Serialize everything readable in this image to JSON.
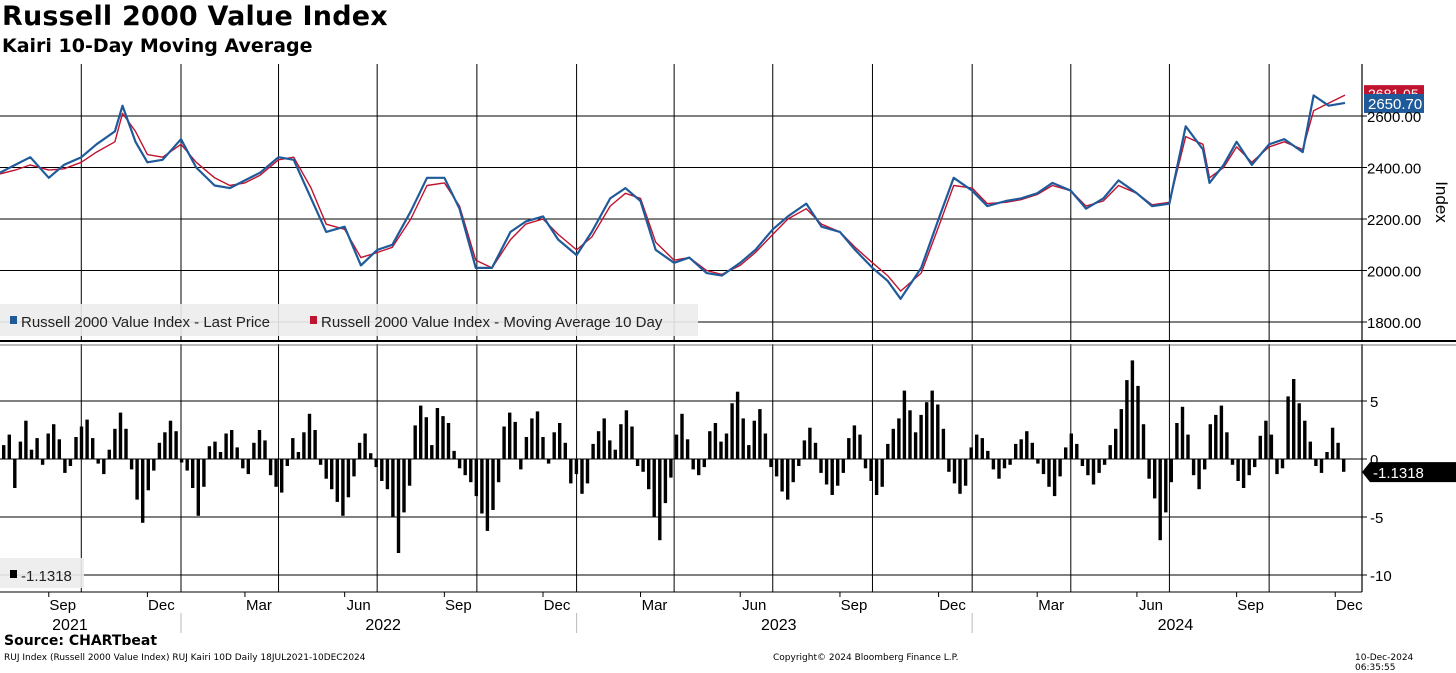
{
  "header": {
    "title": "Russell 2000 Value Index",
    "subtitle": "Kairi 10-Day Moving Average"
  },
  "footer": {
    "source": "Source: CHARTbeat",
    "left": "RUJ Index (Russell 2000 Value Index) RUJ Kairi 10D  Daily 18JUL2021-10DEC2024",
    "center": "Copyright© 2024 Bloomberg Finance L.P.",
    "right": "10-Dec-2024 06:35:55"
  },
  "colors": {
    "price": "#1f5a9a",
    "ma": "#c0132f",
    "kairi": "#000000",
    "grid": "#000000"
  },
  "chart_data": [
    {
      "type": "line",
      "ylabel": "Index",
      "ylim": [
        1750,
        2760
      ],
      "yticks": [
        "1800.00",
        "2000.00",
        "2200.00",
        "2400.00",
        "2600.00"
      ],
      "x_month_labels": [
        "Sep",
        "Dec",
        "Mar",
        "Jun",
        "Sep",
        "Dec",
        "Mar",
        "Jun",
        "Sep",
        "Dec",
        "Mar",
        "Jun",
        "Sep",
        "Dec"
      ],
      "x_year_labels": [
        "2021",
        "2022",
        "2023",
        "2024"
      ],
      "legend": [
        "Russell 2000 Value Index - Last Price",
        "Russell 2000 Value Index - Moving Average 10 Day"
      ],
      "last_value_labels": {
        "price": "2650.70",
        "ma": "2681.05"
      },
      "x": [
        "2021-07-18",
        "2021-08-01",
        "2021-08-15",
        "2021-09-01",
        "2021-09-15",
        "2021-10-01",
        "2021-10-15",
        "2021-11-01",
        "2021-11-08",
        "2021-11-20",
        "2021-12-01",
        "2021-12-15",
        "2022-01-01",
        "2022-01-15",
        "2022-02-01",
        "2022-02-15",
        "2022-03-01",
        "2022-03-15",
        "2022-04-01",
        "2022-04-15",
        "2022-05-01",
        "2022-05-15",
        "2022-06-01",
        "2022-06-16",
        "2022-07-01",
        "2022-07-15",
        "2022-08-01",
        "2022-08-16",
        "2022-09-01",
        "2022-09-15",
        "2022-09-30",
        "2022-10-15",
        "2022-11-01",
        "2022-11-15",
        "2022-12-01",
        "2022-12-15",
        "2023-01-01",
        "2023-01-15",
        "2023-02-01",
        "2023-02-15",
        "2023-03-01",
        "2023-03-15",
        "2023-04-01",
        "2023-04-15",
        "2023-05-01",
        "2023-05-15",
        "2023-06-01",
        "2023-06-15",
        "2023-07-01",
        "2023-07-15",
        "2023-08-01",
        "2023-08-15",
        "2023-09-01",
        "2023-09-15",
        "2023-10-01",
        "2023-10-15",
        "2023-10-27",
        "2023-11-15",
        "2023-12-01",
        "2023-12-15",
        "2024-01-01",
        "2024-01-15",
        "2024-02-01",
        "2024-02-15",
        "2024-03-01",
        "2024-03-15",
        "2024-04-01",
        "2024-04-15",
        "2024-05-01",
        "2024-05-15",
        "2024-06-01",
        "2024-06-15",
        "2024-07-01",
        "2024-07-16",
        "2024-08-01",
        "2024-08-07",
        "2024-08-20",
        "2024-09-01",
        "2024-09-15",
        "2024-10-01",
        "2024-10-15",
        "2024-11-01",
        "2024-11-11",
        "2024-11-25",
        "2024-12-10"
      ],
      "series": [
        {
          "name": "Russell 2000 Value Index - Last Price",
          "values": [
            2380,
            2410,
            2440,
            2360,
            2410,
            2440,
            2490,
            2540,
            2640,
            2500,
            2420,
            2430,
            2510,
            2400,
            2330,
            2320,
            2350,
            2380,
            2440,
            2430,
            2280,
            2150,
            2170,
            2020,
            2080,
            2100,
            2230,
            2360,
            2360,
            2240,
            2010,
            2010,
            2150,
            2190,
            2210,
            2120,
            2060,
            2150,
            2280,
            2320,
            2270,
            2080,
            2030,
            2050,
            1990,
            1980,
            2030,
            2080,
            2160,
            2210,
            2260,
            2170,
            2150,
            2080,
            2010,
            1960,
            1890,
            2010,
            2200,
            2360,
            2310,
            2250,
            2270,
            2280,
            2300,
            2340,
            2310,
            2240,
            2280,
            2350,
            2300,
            2250,
            2260,
            2560,
            2470,
            2340,
            2410,
            2500,
            2410,
            2490,
            2510,
            2460,
            2680,
            2640,
            2650.7
          ]
        },
        {
          "name": "Russell 2000 Value Index - Moving Average 10 Day",
          "values": [
            2375,
            2390,
            2410,
            2390,
            2395,
            2420,
            2460,
            2500,
            2610,
            2540,
            2450,
            2440,
            2490,
            2420,
            2360,
            2330,
            2340,
            2370,
            2430,
            2440,
            2320,
            2180,
            2160,
            2050,
            2070,
            2090,
            2200,
            2330,
            2340,
            2250,
            2040,
            2010,
            2120,
            2180,
            2200,
            2140,
            2080,
            2130,
            2250,
            2300,
            2280,
            2110,
            2040,
            2050,
            2000,
            1985,
            2020,
            2070,
            2140,
            2200,
            2240,
            2180,
            2150,
            2090,
            2030,
            1980,
            1920,
            1990,
            2170,
            2330,
            2320,
            2260,
            2265,
            2275,
            2295,
            2330,
            2310,
            2250,
            2270,
            2330,
            2300,
            2255,
            2265,
            2520,
            2490,
            2360,
            2400,
            2480,
            2420,
            2480,
            2500,
            2470,
            2620,
            2650,
            2681.05
          ]
        }
      ]
    },
    {
      "type": "bar",
      "ylim": [
        -11,
        9.5
      ],
      "yticks": [
        "5",
        "0",
        "-5",
        "-10"
      ],
      "last_value_label": "-1.1318",
      "legend": [
        "-1.1318"
      ],
      "bar_data_type": "approx_sampled",
      "values": [
        1.2,
        2.1,
        -2.5,
        1.5,
        3.3,
        0.8,
        1.8,
        -0.5,
        2.2,
        3.0,
        1.7,
        -1.2,
        -0.6,
        1.9,
        2.8,
        3.4,
        1.8,
        -0.4,
        -1.3,
        0.8,
        2.6,
        4.0,
        2.6,
        -0.9,
        -3.5,
        -5.5,
        -2.7,
        -1.0,
        1.4,
        2.3,
        3.3,
        2.4,
        -0.3,
        -1.0,
        -2.5,
        -4.9,
        -2.4,
        1.1,
        1.5,
        0.6,
        2.2,
        2.5,
        1.0,
        -0.8,
        -1.3,
        1.4,
        2.5,
        1.6,
        -1.4,
        -2.4,
        -2.9,
        -0.6,
        1.8,
        0.6,
        2.3,
        3.9,
        2.5,
        -0.5,
        -1.7,
        -2.6,
        -3.7,
        -4.9,
        -3.3,
        -1.5,
        1.4,
        2.2,
        0.5,
        -0.7,
        -1.9,
        -2.6,
        -5.0,
        -8.1,
        -4.6,
        -2.3,
        2.9,
        4.6,
        3.6,
        1.2,
        4.4,
        3.7,
        3.1,
        0.7,
        -0.8,
        -1.4,
        -2.0,
        -3.2,
        -4.7,
        -6.2,
        -4.4,
        -2.0,
        2.8,
        4.0,
        3.2,
        -0.9,
        1.9,
        3.5,
        4.1,
        1.9,
        -0.4,
        2.3,
        3.1,
        1.4,
        -2.1,
        -1.3,
        -3.0,
        -2.1,
        1.3,
        2.4,
        3.5,
        1.6,
        0.8,
        3.0,
        4.2,
        2.8,
        -0.6,
        -1.1,
        -2.6,
        -5.0,
        -7.0,
        -3.8,
        -1.6,
        2.1,
        3.9,
        1.7,
        -0.9,
        -1.4,
        -0.7,
        2.4,
        3.1,
        1.5,
        2.2,
        4.8,
        5.8,
        3.5,
        1.2,
        3.3,
        4.3,
        2.2,
        -0.7,
        -1.5,
        -2.8,
        -3.5,
        -2.0,
        -0.6,
        1.6,
        2.7,
        1.4,
        -1.2,
        -2.2,
        -3.1,
        -2.3,
        -1.2,
        1.8,
        2.9,
        2.1,
        -0.8,
        -1.9,
        -3.1,
        -2.4,
        1.3,
        2.6,
        3.5,
        5.9,
        4.2,
        2.3,
        3.8,
        4.9,
        5.9,
        4.7,
        2.6,
        -1.1,
        -2.1,
        -3.0,
        -2.3,
        1.0,
        2.1,
        1.8,
        0.7,
        -0.9,
        -1.7,
        -0.8,
        -0.5,
        1.3,
        1.7,
        2.4,
        1.4,
        -0.4,
        -1.3,
        -2.4,
        -3.2,
        -1.5,
        1.0,
        2.2,
        1.3,
        -0.6,
        -1.4,
        -2.2,
        -1.2,
        -0.5,
        1.2,
        2.6,
        4.3,
        6.8,
        8.5,
        6.3,
        3.0,
        -1.7,
        -3.4,
        -7.0,
        -4.6,
        -2.0,
        3.1,
        4.5,
        2.1,
        -1.4,
        -2.6,
        -0.9,
        3.0,
        3.8,
        4.6,
        2.3,
        -0.5,
        -1.9,
        -2.5,
        -1.4,
        -0.7,
        2.0,
        3.3,
        2.1,
        -1.3,
        -0.8,
        5.4,
        6.9,
        4.8,
        3.3,
        1.5,
        -0.6,
        -1.2,
        0.6,
        2.7,
        1.4,
        -1.1
      ]
    }
  ]
}
